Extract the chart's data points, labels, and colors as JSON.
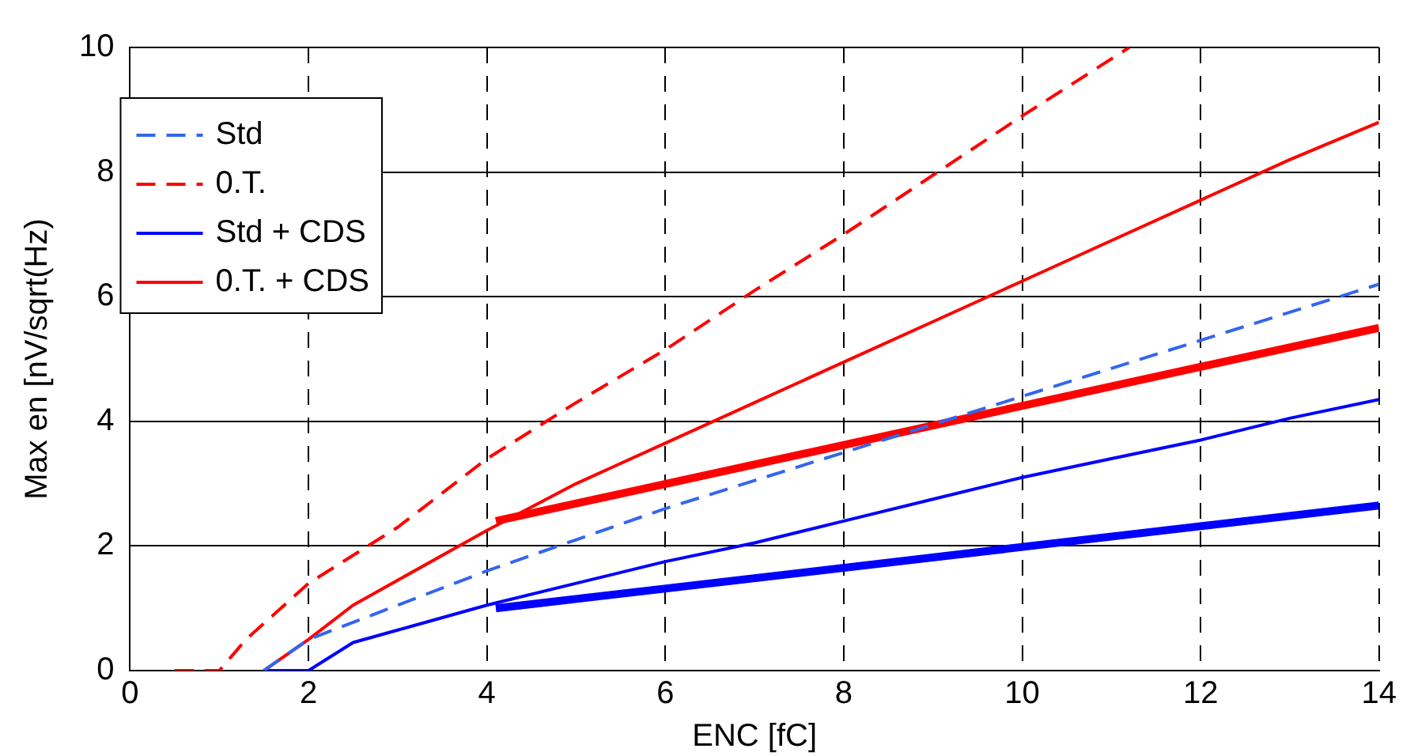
{
  "chart_data": {
    "type": "line",
    "xlabel": "ENC [fC]",
    "ylabel": "Max en [nV/sqrt(Hz)",
    "xlim": [
      0,
      14
    ],
    "xticks": [
      0,
      2,
      4,
      6,
      8,
      10,
      12,
      14
    ],
    "ylim": [
      0,
      10
    ],
    "yticks": [
      0,
      2,
      4,
      6,
      8,
      10
    ],
    "grid": true,
    "legend": "top left",
    "marker": "none",
    "series": [
      {
        "name": "Std",
        "color": "#3366ee",
        "line_style": "dashed",
        "x": [
          1.5,
          2,
          3,
          4,
          5,
          6,
          7,
          8,
          9,
          10,
          11,
          12,
          13,
          14
        ],
        "values": [
          0,
          0.5,
          1.05,
          1.6,
          2.1,
          2.6,
          3.05,
          3.5,
          3.95,
          4.4,
          4.85,
          5.3,
          5.75,
          6.2
        ]
      },
      {
        "name": "0.T.",
        "color": "#ff0000",
        "line_style": "dashed",
        "x": [
          0.5,
          1,
          1.3,
          2,
          3,
          4,
          5,
          6,
          7,
          8,
          9,
          10,
          11.2
        ],
        "values": [
          0,
          0,
          0.5,
          1.4,
          2.3,
          3.4,
          4.3,
          5.15,
          6.1,
          7.0,
          7.95,
          8.9,
          10
        ]
      },
      {
        "name": "Std + CDS",
        "color": "#0000ff",
        "line_style": "solid",
        "x": [
          1.5,
          2,
          2.5,
          3,
          4,
          5,
          6,
          7,
          8,
          9,
          10,
          11,
          12,
          13,
          14
        ],
        "values": [
          0,
          0,
          0.45,
          0.65,
          1.05,
          1.4,
          1.75,
          2.05,
          2.4,
          2.75,
          3.1,
          3.4,
          3.7,
          4.05,
          4.35
        ]
      },
      {
        "name": "0.T. + CDS",
        "color": "#ff0000",
        "line_style": "solid",
        "x": [
          1.5,
          2,
          2.5,
          3,
          4,
          5,
          6,
          7,
          8,
          9,
          10,
          11,
          12,
          13,
          14
        ],
        "values": [
          0,
          0.5,
          1.05,
          1.45,
          2.25,
          3.0,
          3.65,
          4.3,
          4.95,
          5.6,
          6.25,
          6.9,
          7.55,
          8.2,
          8.8
        ]
      },
      {
        "color": "#ff0000",
        "line_style": "solid",
        "x": [
          4.1,
          14
        ],
        "values": [
          2.4,
          5.5
        ]
      },
      {
        "color": "#0000ff",
        "line_style": "solid",
        "x": [
          4.1,
          14
        ],
        "values": [
          1.0,
          2.65
        ]
      }
    ]
  }
}
